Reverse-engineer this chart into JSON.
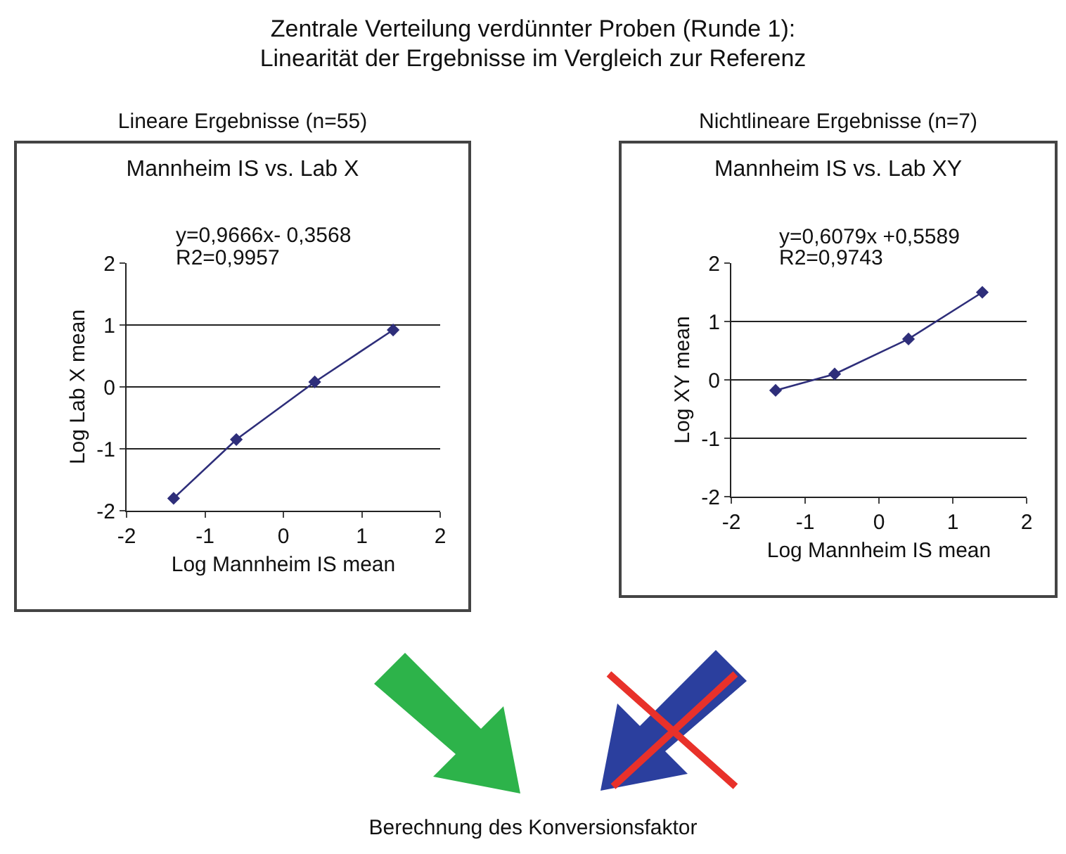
{
  "chart_data": [
    {
      "type": "other",
      "title": "Zentrale Verteilung verdünnter Proben (Runde 1):\nLinearität der Ergebnisse im Vergleich zur Referenz"
    },
    {
      "type": "line",
      "subtitle": "Lineare Ergebnisse (n=55)",
      "title": "Mannheim IS vs. Lab X",
      "xlabel": "Log Mannheim IS mean",
      "ylabel": "Log Lab X mean",
      "annotations": [
        "y=0,9666x- 0,3568",
        "R2=0,9957"
      ],
      "x": [
        -1.4,
        -0.6,
        0.4,
        1.4
      ],
      "series": [
        {
          "color": "#2e2e7a",
          "values": [
            -1.8,
            -0.85,
            0.08,
            0.92
          ]
        }
      ],
      "xlim": [
        -2,
        2
      ],
      "xticks": [
        -2,
        -1,
        0,
        1,
        2
      ],
      "ylim": [
        -2,
        2
      ],
      "yticks": [
        -2,
        -1,
        0,
        1,
        2
      ],
      "grid": "y",
      "marker": "diamond",
      "line_style": "solid"
    },
    {
      "type": "line",
      "subtitle": "Nichtlineare Ergebnisse (n=7)",
      "title": "Mannheim IS vs. Lab XY",
      "xlabel": "Log Mannheim IS mean",
      "ylabel": "Log XY mean",
      "annotations": [
        "y=0,6079x +0,5589",
        "R2=0,9743"
      ],
      "x": [
        -1.4,
        -0.6,
        0.4,
        1.4
      ],
      "series": [
        {
          "color": "#2e2e7a",
          "values": [
            -0.18,
            0.1,
            0.7,
            1.5
          ]
        }
      ],
      "xlim": [
        -2,
        2
      ],
      "xticks": [
        -2,
        -1,
        0,
        1,
        2
      ],
      "ylim": [
        -2,
        2
      ],
      "yticks": [
        -2,
        -1,
        0,
        1,
        2
      ],
      "grid": "y",
      "marker": "diamond",
      "line_style": "solid"
    },
    {
      "type": "other",
      "annotations": [
        "Berechnung des Konversionsfaktor"
      ]
    }
  ]
}
